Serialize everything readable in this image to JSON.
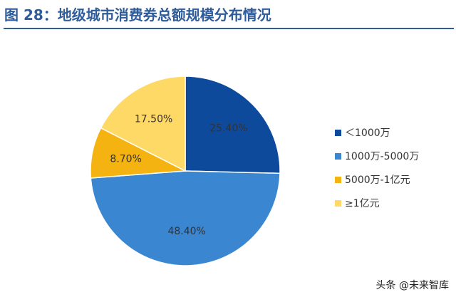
{
  "header": {
    "title": "图 28：地级城市消费券总额规模分布情况"
  },
  "chart_data": {
    "type": "pie",
    "slices": [
      {
        "label": "＜1000万",
        "value": 25.4,
        "display": "25.40%",
        "color": "#0e4a9c"
      },
      {
        "label": "1000万-5000万",
        "value": 48.4,
        "display": "48.40%",
        "color": "#3a86d0"
      },
      {
        "label": "5000万-1亿元",
        "value": 8.7,
        "display": "8.70%",
        "color": "#f5b312"
      },
      {
        "label": "≥1亿元",
        "value": 17.5,
        "display": "17.50%",
        "color": "#ffd966"
      }
    ],
    "legend_position": "right"
  },
  "watermark": {
    "text": "头条 @未来智库"
  }
}
